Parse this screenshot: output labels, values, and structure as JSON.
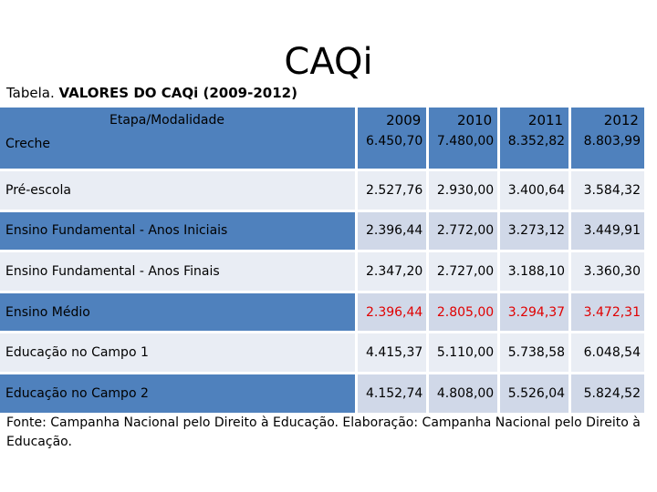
{
  "slide": {
    "title": "CAQi",
    "subtitle_prefix": "Tabela.",
    "subtitle_bold": "VALORES DO CAQi (2009-2012)"
  },
  "table": {
    "header_label": "Etapa/Modalidade",
    "years": [
      "2009",
      "2010",
      "2011",
      "2012"
    ],
    "rows": [
      {
        "label": "Creche",
        "values": [
          "6.450,70",
          "7.480,00",
          "8.352,82",
          "8.803,99"
        ]
      },
      {
        "label": "Pré-escola",
        "values": [
          "2.527,76",
          "2.930,00",
          "3.400,64",
          "3.584,32"
        ]
      },
      {
        "label": "Ensino Fundamental - Anos Iniciais",
        "values": [
          "2.396,44",
          "2.772,00",
          "3.273,12",
          "3.449,91"
        ]
      },
      {
        "label": "Ensino Fundamental - Anos Finais",
        "values": [
          "2.347,20",
          "2.727,00",
          "3.188,10",
          "3.360,30"
        ]
      },
      {
        "label": "Ensino Médio",
        "values": [
          "2.396,44",
          "2.805,00",
          "3.294,37",
          "3.472,31"
        ]
      },
      {
        "label": "Educação no Campo 1",
        "values": [
          "4.415,37",
          "5.110,00",
          "5.738,58",
          "6.048,54"
        ]
      },
      {
        "label": "Educação no Campo 2",
        "values": [
          "4.152,74",
          "4.808,00",
          "5.526,04",
          "5.824,52"
        ]
      }
    ],
    "highlight_color": "#e00000",
    "header_color": "#4f81bd"
  },
  "footnote": "Fonte: Campanha Nacional pelo Direito à Educação. Elaboração: Campanha Nacional pelo Direito à Educação."
}
